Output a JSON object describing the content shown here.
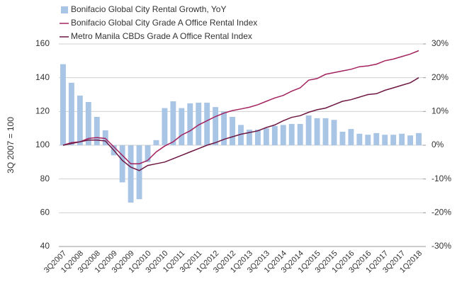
{
  "chart_data": {
    "type": "bar_line",
    "y_label": "3Q 2007 = 100",
    "categories": [
      "3Q2007",
      null,
      "1Q2008",
      null,
      "3Q2008",
      null,
      "1Q2009",
      null,
      "3Q2009",
      null,
      "1Q2010",
      null,
      "3Q2010",
      null,
      "1Q2011",
      null,
      "3Q2011",
      null,
      "1Q2012",
      null,
      "3Q2012",
      null,
      "1Q2013",
      null,
      "3Q2013",
      null,
      "1Q2014",
      null,
      "3Q2014",
      null,
      "1Q2015",
      null,
      "3Q2015",
      null,
      "1Q2016",
      null,
      "3Q2016",
      null,
      "1Q2017",
      null,
      "3Q2017",
      null,
      "1Q2018"
    ],
    "series": [
      {
        "name": "Bonifacio Global City Rental Growth, YoY",
        "type": "bar",
        "axis": "y2",
        "color": "#a9c5e6",
        "values": [
          24,
          18.5,
          14.7,
          12.8,
          8.4,
          4.4,
          -3,
          -11,
          -17,
          -16,
          -5,
          1.5,
          11,
          13,
          11,
          12.4,
          12.6,
          12.6,
          11.3,
          10,
          8.4,
          6,
          4.6,
          4.6,
          5,
          5.7,
          6,
          6.3,
          6.3,
          8.8,
          8,
          8,
          7.5,
          4,
          4.8,
          3.4,
          3.1,
          3.6,
          3.1,
          3.1,
          3.4,
          2.9,
          3.6
        ]
      },
      {
        "name": "Bonifacio Global City Grade A Office Rental Index",
        "type": "line",
        "color": "#a3225e",
        "values": [
          100,
          101.5,
          102,
          104,
          104.5,
          104,
          99,
          94,
          89,
          89,
          91,
          96,
          99.5,
          102,
          106,
          108.5,
          112,
          114.5,
          117,
          119,
          120.5,
          121.5,
          122.5,
          124,
          126,
          128,
          129.5,
          132,
          134,
          138.5,
          139.5,
          142,
          143,
          144,
          145,
          146.5,
          147,
          148,
          150,
          151,
          152.5,
          154,
          156
        ]
      },
      {
        "name": "Metro Manila CBDs Grade A Office Rental Index",
        "type": "line",
        "color": "#6e1742",
        "values": [
          100,
          101,
          102,
          103,
          103,
          102.5,
          97,
          91,
          87,
          85,
          88,
          89,
          90,
          92,
          94,
          96,
          98,
          100,
          101.5,
          103.5,
          105,
          106.5,
          107.5,
          108.5,
          110.5,
          112,
          114.5,
          116.5,
          117.5,
          119.5,
          121,
          122,
          124,
          126,
          127,
          128.5,
          130,
          130.5,
          132.5,
          134,
          135.5,
          137,
          140
        ]
      }
    ],
    "ylim": [
      40,
      160
    ],
    "yticks": [
      40,
      60,
      80,
      100,
      120,
      140,
      160
    ],
    "y2lim": [
      -30,
      30
    ],
    "y2ticks": [
      {
        "value": -30,
        "label": "-30%"
      },
      {
        "value": -20,
        "label": "-20%"
      },
      {
        "value": -10,
        "label": "-10%"
      },
      {
        "value": 0,
        "label": "0%"
      },
      {
        "value": 10,
        "label": "10%"
      },
      {
        "value": 20,
        "label": "20%"
      },
      {
        "value": 30,
        "label": "30%"
      }
    ],
    "grid": true
  }
}
